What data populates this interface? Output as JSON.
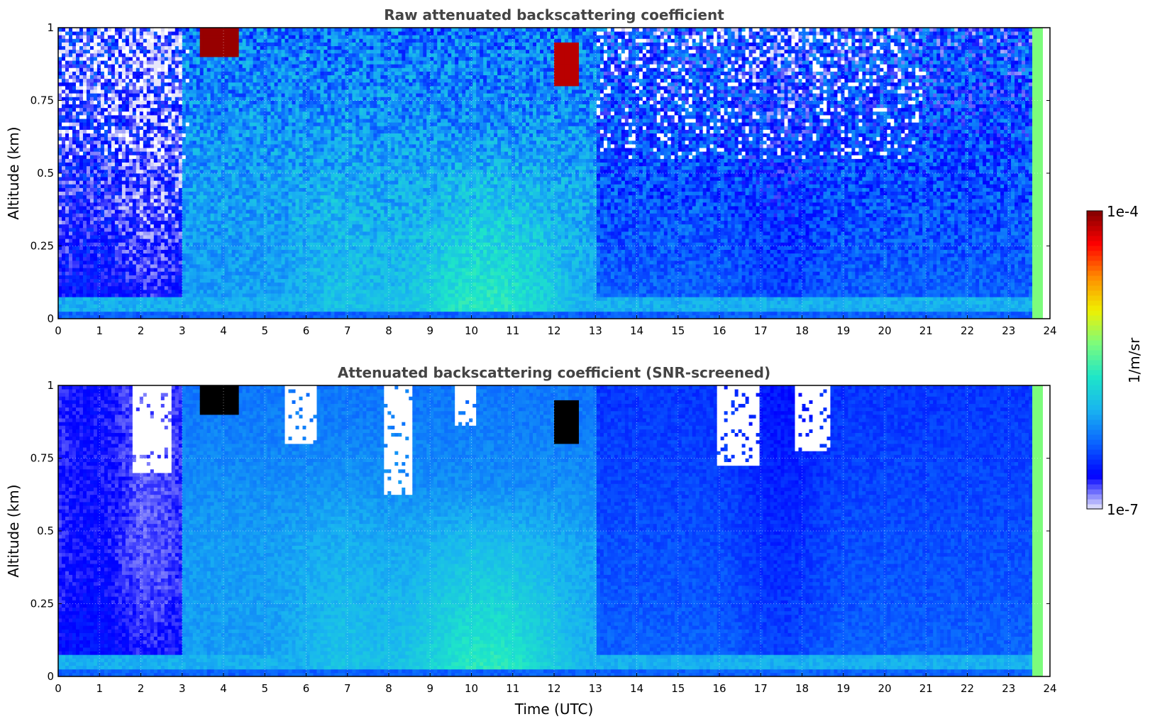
{
  "colors": {
    "colormap": [
      "#e6e6fa",
      "#0000ff",
      "#0a64ff",
      "#19b4f0",
      "#1ee6c8",
      "#7cfc7c",
      "#f0f000",
      "#ff8c00",
      "#ff0000",
      "#800000"
    ],
    "over": "#000000",
    "missing": "#ffffff"
  },
  "chart_data": [
    {
      "type": "heatmap",
      "title": "Raw attenuated backscattering coefficient",
      "xlabel": "",
      "ylabel": "Altitude (km)",
      "xlim": [
        0,
        24
      ],
      "ylim": [
        0,
        1
      ],
      "x_ticks": [
        "0",
        "1",
        "2",
        "3",
        "4",
        "5",
        "6",
        "7",
        "8",
        "9",
        "10",
        "11",
        "12",
        "13",
        "14",
        "15",
        "16",
        "17",
        "18",
        "19",
        "20",
        "21",
        "22",
        "23",
        "24"
      ],
      "y_ticks": [
        "0",
        "0.25",
        "0.5",
        "0.75",
        "1"
      ],
      "grid": true,
      "color_scale": "log",
      "clim": [
        1e-07,
        0.0001
      ],
      "data_end_hour": 23.6,
      "features": [
        {
          "kind": "clear-air low signal",
          "x_range": [
            0,
            3
          ],
          "y_range": [
            0,
            1
          ],
          "level": 0.08
        },
        {
          "kind": "aerosol boundary layer",
          "x_range": [
            3,
            13
          ],
          "y_range": [
            0,
            0.6
          ],
          "level": 0.36
        },
        {
          "kind": "boundary layer peak",
          "x_range": [
            9.2,
            11.8
          ],
          "y_range": [
            0,
            0.45
          ],
          "level": 0.44
        },
        {
          "kind": "cloud",
          "x_range": [
            3.4,
            4.4
          ],
          "y_range": [
            0.9,
            1
          ],
          "level": 0.98
        },
        {
          "kind": "cloud",
          "x_range": [
            12,
            12.6
          ],
          "y_range": [
            0.8,
            0.95
          ],
          "level": 0.95
        },
        {
          "kind": "evening residual layer",
          "x_range": [
            13,
            23.6
          ],
          "y_range": [
            0,
            1
          ],
          "level": 0.18
        }
      ]
    },
    {
      "type": "heatmap",
      "title": "Attenuated backscattering coefficient (SNR-screened)",
      "xlabel": "Time (UTC)",
      "ylabel": "Altitude (km)",
      "xlim": [
        0,
        24
      ],
      "ylim": [
        0,
        1
      ],
      "x_ticks": [
        "0",
        "1",
        "2",
        "3",
        "4",
        "5",
        "6",
        "7",
        "8",
        "9",
        "10",
        "11",
        "12",
        "13",
        "14",
        "15",
        "16",
        "17",
        "18",
        "19",
        "20",
        "21",
        "22",
        "23",
        "24"
      ],
      "y_ticks": [
        "0",
        "0.25",
        "0.5",
        "0.75",
        "1"
      ],
      "grid": true,
      "color_scale": "log",
      "clim": [
        1e-07,
        0.0001
      ],
      "data_end_hour": 23.6,
      "screened_regions": [
        {
          "x_range": [
            1.8,
            2.7
          ],
          "y_range": [
            0.7,
            1
          ]
        },
        {
          "x_range": [
            5.5,
            6.3
          ],
          "y_range": [
            0.8,
            1
          ]
        },
        {
          "x_range": [
            7.9,
            8.6
          ],
          "y_range": [
            0.62,
            1
          ]
        },
        {
          "x_range": [
            9.6,
            10.1
          ],
          "y_range": [
            0.86,
            1
          ]
        },
        {
          "x_range": [
            15.9,
            17.0
          ],
          "y_range": [
            0.72,
            1
          ]
        },
        {
          "x_range": [
            17.8,
            18.7
          ],
          "y_range": [
            0.78,
            1
          ]
        }
      ],
      "features": [
        {
          "kind": "cloud (over range)",
          "x_range": [
            3.4,
            4.4
          ],
          "y_range": [
            0.9,
            1
          ],
          "level": 1.05
        },
        {
          "kind": "cloud (over range)",
          "x_range": [
            12,
            12.6
          ],
          "y_range": [
            0.8,
            0.95
          ],
          "level": 1.05
        }
      ]
    }
  ],
  "colorbar": {
    "label": "1/m/sr",
    "max_label": "1e-4",
    "min_label": "1e-7"
  }
}
